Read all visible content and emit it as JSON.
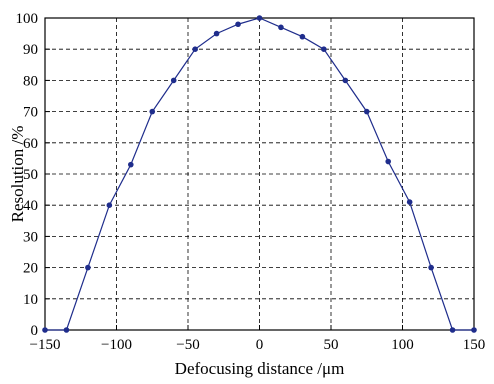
{
  "chart_data": {
    "type": "line",
    "xlabel": "Defocusing distance /μm",
    "ylabel": "Resolution /%",
    "xlim": [
      -150,
      150
    ],
    "ylim": [
      0,
      100
    ],
    "xticks": [
      -150,
      -100,
      -50,
      0,
      50,
      100,
      150
    ],
    "yticks": [
      0,
      10,
      20,
      30,
      40,
      50,
      60,
      70,
      80,
      90,
      100
    ],
    "xtick_labels": [
      "−150",
      "−100",
      "−50",
      "0",
      "50",
      "100",
      "150"
    ],
    "ytick_labels": [
      "0",
      "10",
      "20",
      "30",
      "40",
      "50",
      "60",
      "70",
      "80",
      "90",
      "100"
    ],
    "grid": true,
    "series": [
      {
        "color": "#1f2d8c",
        "x": [
          -150,
          -135,
          -120,
          -105,
          -90,
          -75,
          -60,
          -45,
          -30,
          -15,
          0,
          15,
          30,
          45,
          60,
          75,
          90,
          105,
          120,
          135,
          150
        ],
        "y": [
          0,
          0,
          20,
          40,
          53,
          70,
          80,
          90,
          95,
          98,
          100,
          97,
          94,
          90,
          80,
          70,
          54,
          41,
          20,
          0,
          0
        ]
      }
    ]
  }
}
